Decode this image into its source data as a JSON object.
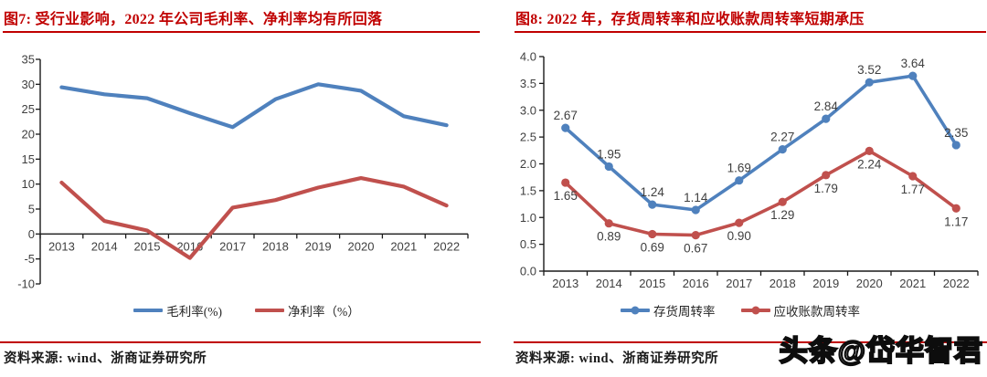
{
  "watermark": {
    "text": "头条@岱华智君"
  },
  "accent_color": "#C00000",
  "panels": [
    {
      "title": "图7:  受行业影响，2022 年公司毛利率、净利率均有所回落",
      "source": "资料来源: wind、浙商证券研究所"
    },
    {
      "title": "图8:  2022 年，存货周转率和应收账款周转率短期承压",
      "source": "资料来源: wind、浙商证券研究所"
    }
  ],
  "chart_data": [
    {
      "type": "line",
      "title": "受行业影响，2022 年公司毛利率、净利率均有所回落",
      "categories": [
        "2013",
        "2014",
        "2015",
        "2016",
        "2017",
        "2018",
        "2019",
        "2020",
        "2021",
        "2022"
      ],
      "series": [
        {
          "name": "毛利率(%)",
          "color": "#4F81BD",
          "marker": false,
          "labels": false,
          "label_position": "above",
          "values": [
            29.4,
            28.0,
            27.2,
            24.2,
            21.4,
            27.0,
            30.0,
            28.7,
            23.6,
            21.8
          ]
        },
        {
          "name": "净利率（%）",
          "color": "#C0504D",
          "marker": false,
          "labels": false,
          "label_position": "below",
          "values": [
            10.3,
            2.6,
            0.7,
            -4.8,
            5.3,
            6.8,
            9.3,
            11.2,
            9.5,
            5.7
          ]
        }
      ],
      "ylim": [
        -10,
        35
      ],
      "ytick_step": 5,
      "ytick_decimals": 0,
      "grid": false,
      "legend_position": "bottom",
      "xlabel": "",
      "ylabel": ""
    },
    {
      "type": "line",
      "title": "2022 年，存货周转率和应收账款周转率短期承压",
      "categories": [
        "2013",
        "2014",
        "2015",
        "2016",
        "2017",
        "2018",
        "2019",
        "2020",
        "2021",
        "2022"
      ],
      "series": [
        {
          "name": "存货周转率",
          "color": "#4F81BD",
          "marker": true,
          "labels": true,
          "label_position": "above",
          "values": [
            2.67,
            1.95,
            1.24,
            1.14,
            1.69,
            2.27,
            2.84,
            3.52,
            3.64,
            2.35
          ]
        },
        {
          "name": "应收账款周转率",
          "color": "#C0504D",
          "marker": true,
          "labels": true,
          "label_position": "below",
          "values": [
            1.65,
            0.89,
            0.69,
            0.67,
            0.9,
            1.29,
            1.79,
            2.24,
            1.77,
            1.17
          ]
        }
      ],
      "ylim": [
        0,
        4
      ],
      "ytick_step": 0.5,
      "ytick_decimals": 1,
      "grid": false,
      "legend_position": "bottom",
      "xlabel": "",
      "ylabel": ""
    }
  ]
}
